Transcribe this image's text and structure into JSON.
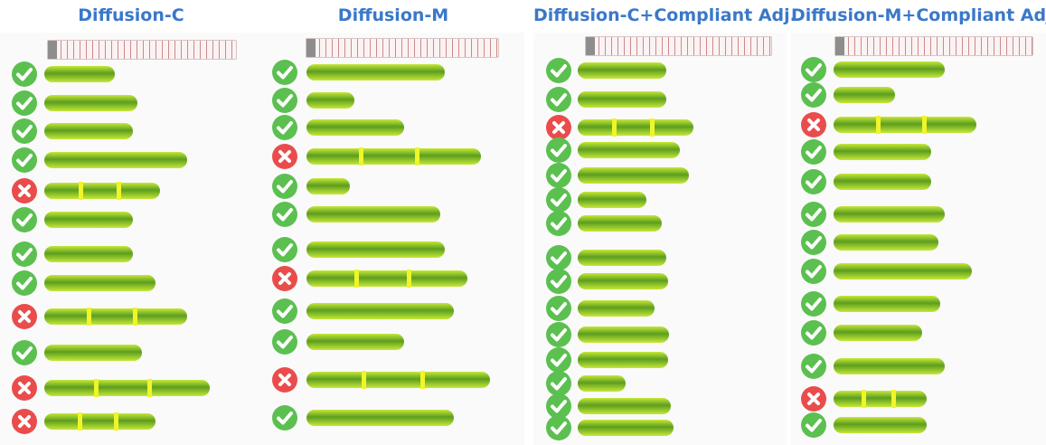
{
  "colors": {
    "title": "#3a78c9",
    "ok": "#5bc050",
    "fail": "#ea4c4c",
    "bean_dark": "#5c9e1e",
    "bean_light": "#c6e838",
    "bean_glow": "#f0f52a"
  },
  "icons": {
    "success": "check-circle-icon",
    "failure": "x-circle-icon"
  },
  "panels": [
    {
      "title": "Diffusion-C",
      "results": [
        "success",
        "success",
        "success",
        "success",
        "failure",
        "success",
        "success",
        "success",
        "failure",
        "success",
        "failure",
        "failure"
      ]
    },
    {
      "title": "Diffusion-M",
      "results": [
        "success",
        "success",
        "success",
        "failure",
        "success",
        "success",
        "success",
        "failure",
        "success",
        "success",
        "failure",
        "success"
      ]
    },
    {
      "title": "Diffusion-C+Compliant Adj.",
      "results": [
        "success",
        "success",
        "failure",
        "success",
        "success",
        "success",
        "success",
        "success",
        "success",
        "success",
        "success",
        "success",
        "success",
        "success",
        "success"
      ]
    },
    {
      "title": "Diffusion-M+Compliant Adj.",
      "results": [
        "success",
        "success",
        "failure",
        "success",
        "success",
        "success",
        "success",
        "success",
        "success",
        "success",
        "success",
        "failure",
        "success"
      ]
    }
  ]
}
